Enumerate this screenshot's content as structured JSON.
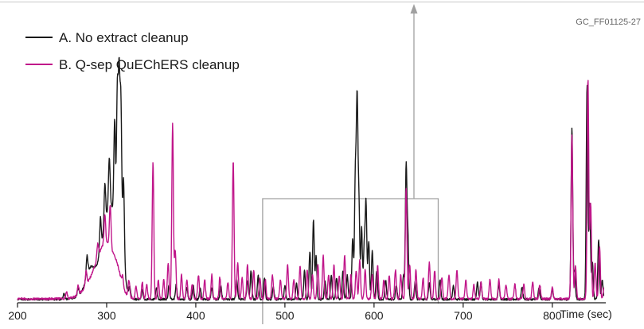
{
  "figure_code": "GC_FF01125-27",
  "colors": {
    "series_a": "#1a1a1a",
    "series_b": "#c0168a",
    "box": "#a0a0a0",
    "frame": "#c8c8c8"
  },
  "chart_data": {
    "type": "line",
    "xlabel": "Time (sec)",
    "ylabel": "",
    "xlim": [
      200,
      860
    ],
    "ylim": [
      0,
      100
    ],
    "xticks": [
      200,
      300,
      400,
      500,
      600,
      700,
      800
    ],
    "grid": false,
    "legend_placement": "top-left",
    "zoom_box_x": [
      475,
      672
    ],
    "series": [
      {
        "name": "A. No extract cleanup",
        "color": "#1a1a1a",
        "baseline": 1,
        "humps": [
          {
            "c": 316,
            "w": 3.5,
            "h": 12
          },
          {
            "c": 305,
            "w": 8,
            "h": 35
          },
          {
            "c": 290,
            "w": 12,
            "h": 9
          },
          {
            "c": 281,
            "w": 4,
            "h": 6
          }
        ],
        "peaks": [
          [
            252,
            2
          ],
          [
            268,
            3
          ],
          [
            278,
            8
          ],
          [
            293,
            14
          ],
          [
            298,
            17
          ],
          [
            303,
            20
          ],
          [
            309,
            40
          ],
          [
            312,
            55
          ],
          [
            314,
            62
          ],
          [
            316,
            55
          ],
          [
            319,
            34
          ],
          [
            326,
            4
          ],
          [
            340,
            4
          ],
          [
            356,
            5
          ],
          [
            370,
            6
          ],
          [
            378,
            6
          ],
          [
            390,
            5
          ],
          [
            397,
            6
          ],
          [
            405,
            5
          ],
          [
            418,
            5
          ],
          [
            428,
            6
          ],
          [
            446,
            8
          ],
          [
            458,
            8
          ],
          [
            462,
            12
          ],
          [
            470,
            10
          ],
          [
            477,
            9
          ],
          [
            487,
            5
          ],
          [
            500,
            6
          ],
          [
            513,
            7
          ],
          [
            522,
            12
          ],
          [
            528,
            20
          ],
          [
            532,
            33
          ],
          [
            535,
            18
          ],
          [
            545,
            8
          ],
          [
            552,
            10
          ],
          [
            558,
            9
          ],
          [
            565,
            12
          ],
          [
            570,
            10
          ],
          [
            576,
            25
          ],
          [
            579,
            50
          ],
          [
            581,
            80
          ],
          [
            583,
            40
          ],
          [
            586,
            30
          ],
          [
            589,
            22
          ],
          [
            591,
            40
          ],
          [
            594,
            24
          ],
          [
            598,
            20
          ],
          [
            603,
            12
          ],
          [
            613,
            8
          ],
          [
            625,
            6
          ],
          [
            633,
            10
          ],
          [
            636,
            55
          ],
          [
            638,
            25
          ],
          [
            646,
            7
          ],
          [
            662,
            7
          ],
          [
            674,
            8
          ],
          [
            689,
            6
          ],
          [
            716,
            7
          ],
          [
            720,
            7
          ],
          [
            740,
            6
          ],
          [
            766,
            5
          ],
          [
            785,
            5
          ],
          [
            800,
            4
          ],
          [
            822,
            72
          ],
          [
            825,
            12
          ],
          [
            839,
            90
          ],
          [
            842,
            40
          ],
          [
            845,
            15
          ],
          [
            852,
            25
          ],
          [
            856,
            8
          ]
        ]
      },
      {
        "name": "B. Q-sep QuEChERS cleanup",
        "color": "#c0168a",
        "baseline": 1.2,
        "humps": [
          {
            "c": 300,
            "w": 10,
            "h": 22
          },
          {
            "c": 283,
            "w": 10,
            "h": 5
          },
          {
            "c": 312,
            "w": 4,
            "h": 4
          }
        ],
        "peaks": [
          [
            255,
            3
          ],
          [
            268,
            4
          ],
          [
            277,
            6
          ],
          [
            290,
            6
          ],
          [
            298,
            12
          ],
          [
            304,
            18
          ],
          [
            318,
            4
          ],
          [
            325,
            7
          ],
          [
            333,
            5
          ],
          [
            340,
            7
          ],
          [
            345,
            6
          ],
          [
            352,
            57
          ],
          [
            358,
            8
          ],
          [
            364,
            8
          ],
          [
            369,
            15
          ],
          [
            374,
            73
          ],
          [
            377,
            20
          ],
          [
            384,
            10
          ],
          [
            390,
            8
          ],
          [
            396,
            6
          ],
          [
            403,
            10
          ],
          [
            410,
            8
          ],
          [
            418,
            10
          ],
          [
            427,
            9
          ],
          [
            436,
            7
          ],
          [
            442,
            58
          ],
          [
            447,
            15
          ],
          [
            452,
            9
          ],
          [
            458,
            14
          ],
          [
            465,
            12
          ],
          [
            472,
            9
          ],
          [
            478,
            8
          ],
          [
            486,
            10
          ],
          [
            495,
            8
          ],
          [
            503,
            14
          ],
          [
            510,
            8
          ],
          [
            517,
            14
          ],
          [
            525,
            12
          ],
          [
            531,
            10
          ],
          [
            537,
            14
          ],
          [
            543,
            18
          ],
          [
            549,
            10
          ],
          [
            555,
            14
          ],
          [
            561,
            10
          ],
          [
            567,
            18
          ],
          [
            574,
            10
          ],
          [
            580,
            12
          ],
          [
            584,
            16
          ],
          [
            590,
            12
          ],
          [
            598,
            10
          ],
          [
            604,
            14
          ],
          [
            611,
            8
          ],
          [
            617,
            10
          ],
          [
            624,
            12
          ],
          [
            630,
            10
          ],
          [
            636,
            46
          ],
          [
            640,
            14
          ],
          [
            647,
            12
          ],
          [
            655,
            9
          ],
          [
            662,
            15
          ],
          [
            668,
            12
          ],
          [
            676,
            9
          ],
          [
            684,
            10
          ],
          [
            693,
            12
          ],
          [
            703,
            8
          ],
          [
            712,
            6
          ],
          [
            720,
            7
          ],
          [
            730,
            8
          ],
          [
            740,
            8
          ],
          [
            748,
            6
          ],
          [
            758,
            6
          ],
          [
            768,
            6
          ],
          [
            778,
            7
          ],
          [
            786,
            6
          ],
          [
            800,
            5
          ],
          [
            822,
            69
          ],
          [
            826,
            14
          ],
          [
            840,
            92
          ],
          [
            843,
            40
          ],
          [
            848,
            15
          ],
          [
            853,
            22
          ],
          [
            858,
            5
          ]
        ]
      }
    ]
  }
}
